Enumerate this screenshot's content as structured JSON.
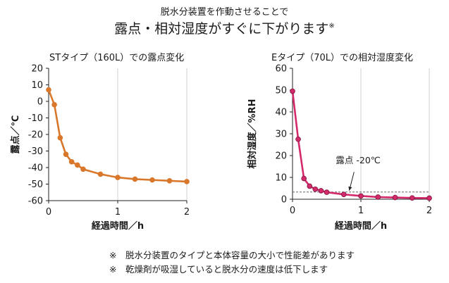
{
  "header": {
    "subtitle": "脱水分装置を作動させることで",
    "headline": "露点・相対湿度がすぐに下がります",
    "headline_mark": "※"
  },
  "notes": [
    "※　脱水分装置のタイプと本体容量の大小で性能差があります",
    "※　乾燥剤が吸湿していると脱水分の速度は低下します"
  ],
  "chart_data": [
    {
      "type": "line",
      "title": "STタイプ（160L）での露点変化",
      "xlabel": "経過時間／h",
      "ylabel": "露点／℃",
      "xlim": [
        0,
        2
      ],
      "ylim": [
        -60,
        20
      ],
      "xticks": [
        0,
        1,
        2
      ],
      "yticks": [
        20,
        10,
        0,
        -10,
        -20,
        -30,
        -40,
        -50,
        -60
      ],
      "grid": "vertical",
      "series": [
        {
          "color": "#d9772b",
          "x": [
            0,
            0.083,
            0.167,
            0.25,
            0.333,
            0.417,
            0.5,
            0.75,
            1.0,
            1.25,
            1.5,
            1.75,
            2.0
          ],
          "y": [
            7,
            -2,
            -22,
            -32,
            -36.5,
            -38.5,
            -41,
            -44,
            -46,
            -47,
            -47.5,
            -48,
            -48.5
          ]
        }
      ]
    },
    {
      "type": "line",
      "title": "Eタイプ（70L）での相対湿度変化",
      "xlabel": "経過時間／h",
      "ylabel": "相対湿度／%RH",
      "xlim": [
        0,
        2
      ],
      "ylim": [
        0,
        60
      ],
      "xticks": [
        0,
        1,
        2
      ],
      "yticks": [
        60,
        50,
        40,
        30,
        20,
        10,
        0
      ],
      "grid": "vertical",
      "reference_line": {
        "y": 3.3,
        "label": "露点 -20℃"
      },
      "series": [
        {
          "color": "#d42a6b",
          "x": [
            0,
            0.083,
            0.167,
            0.25,
            0.333,
            0.417,
            0.5,
            0.75,
            1.0,
            1.25,
            1.5,
            1.75,
            2.0
          ],
          "y": [
            49.5,
            27.5,
            9.5,
            6,
            4.6,
            3.9,
            3.2,
            2.2,
            1.5,
            1.0,
            0.8,
            0.6,
            0.5
          ]
        }
      ]
    }
  ]
}
